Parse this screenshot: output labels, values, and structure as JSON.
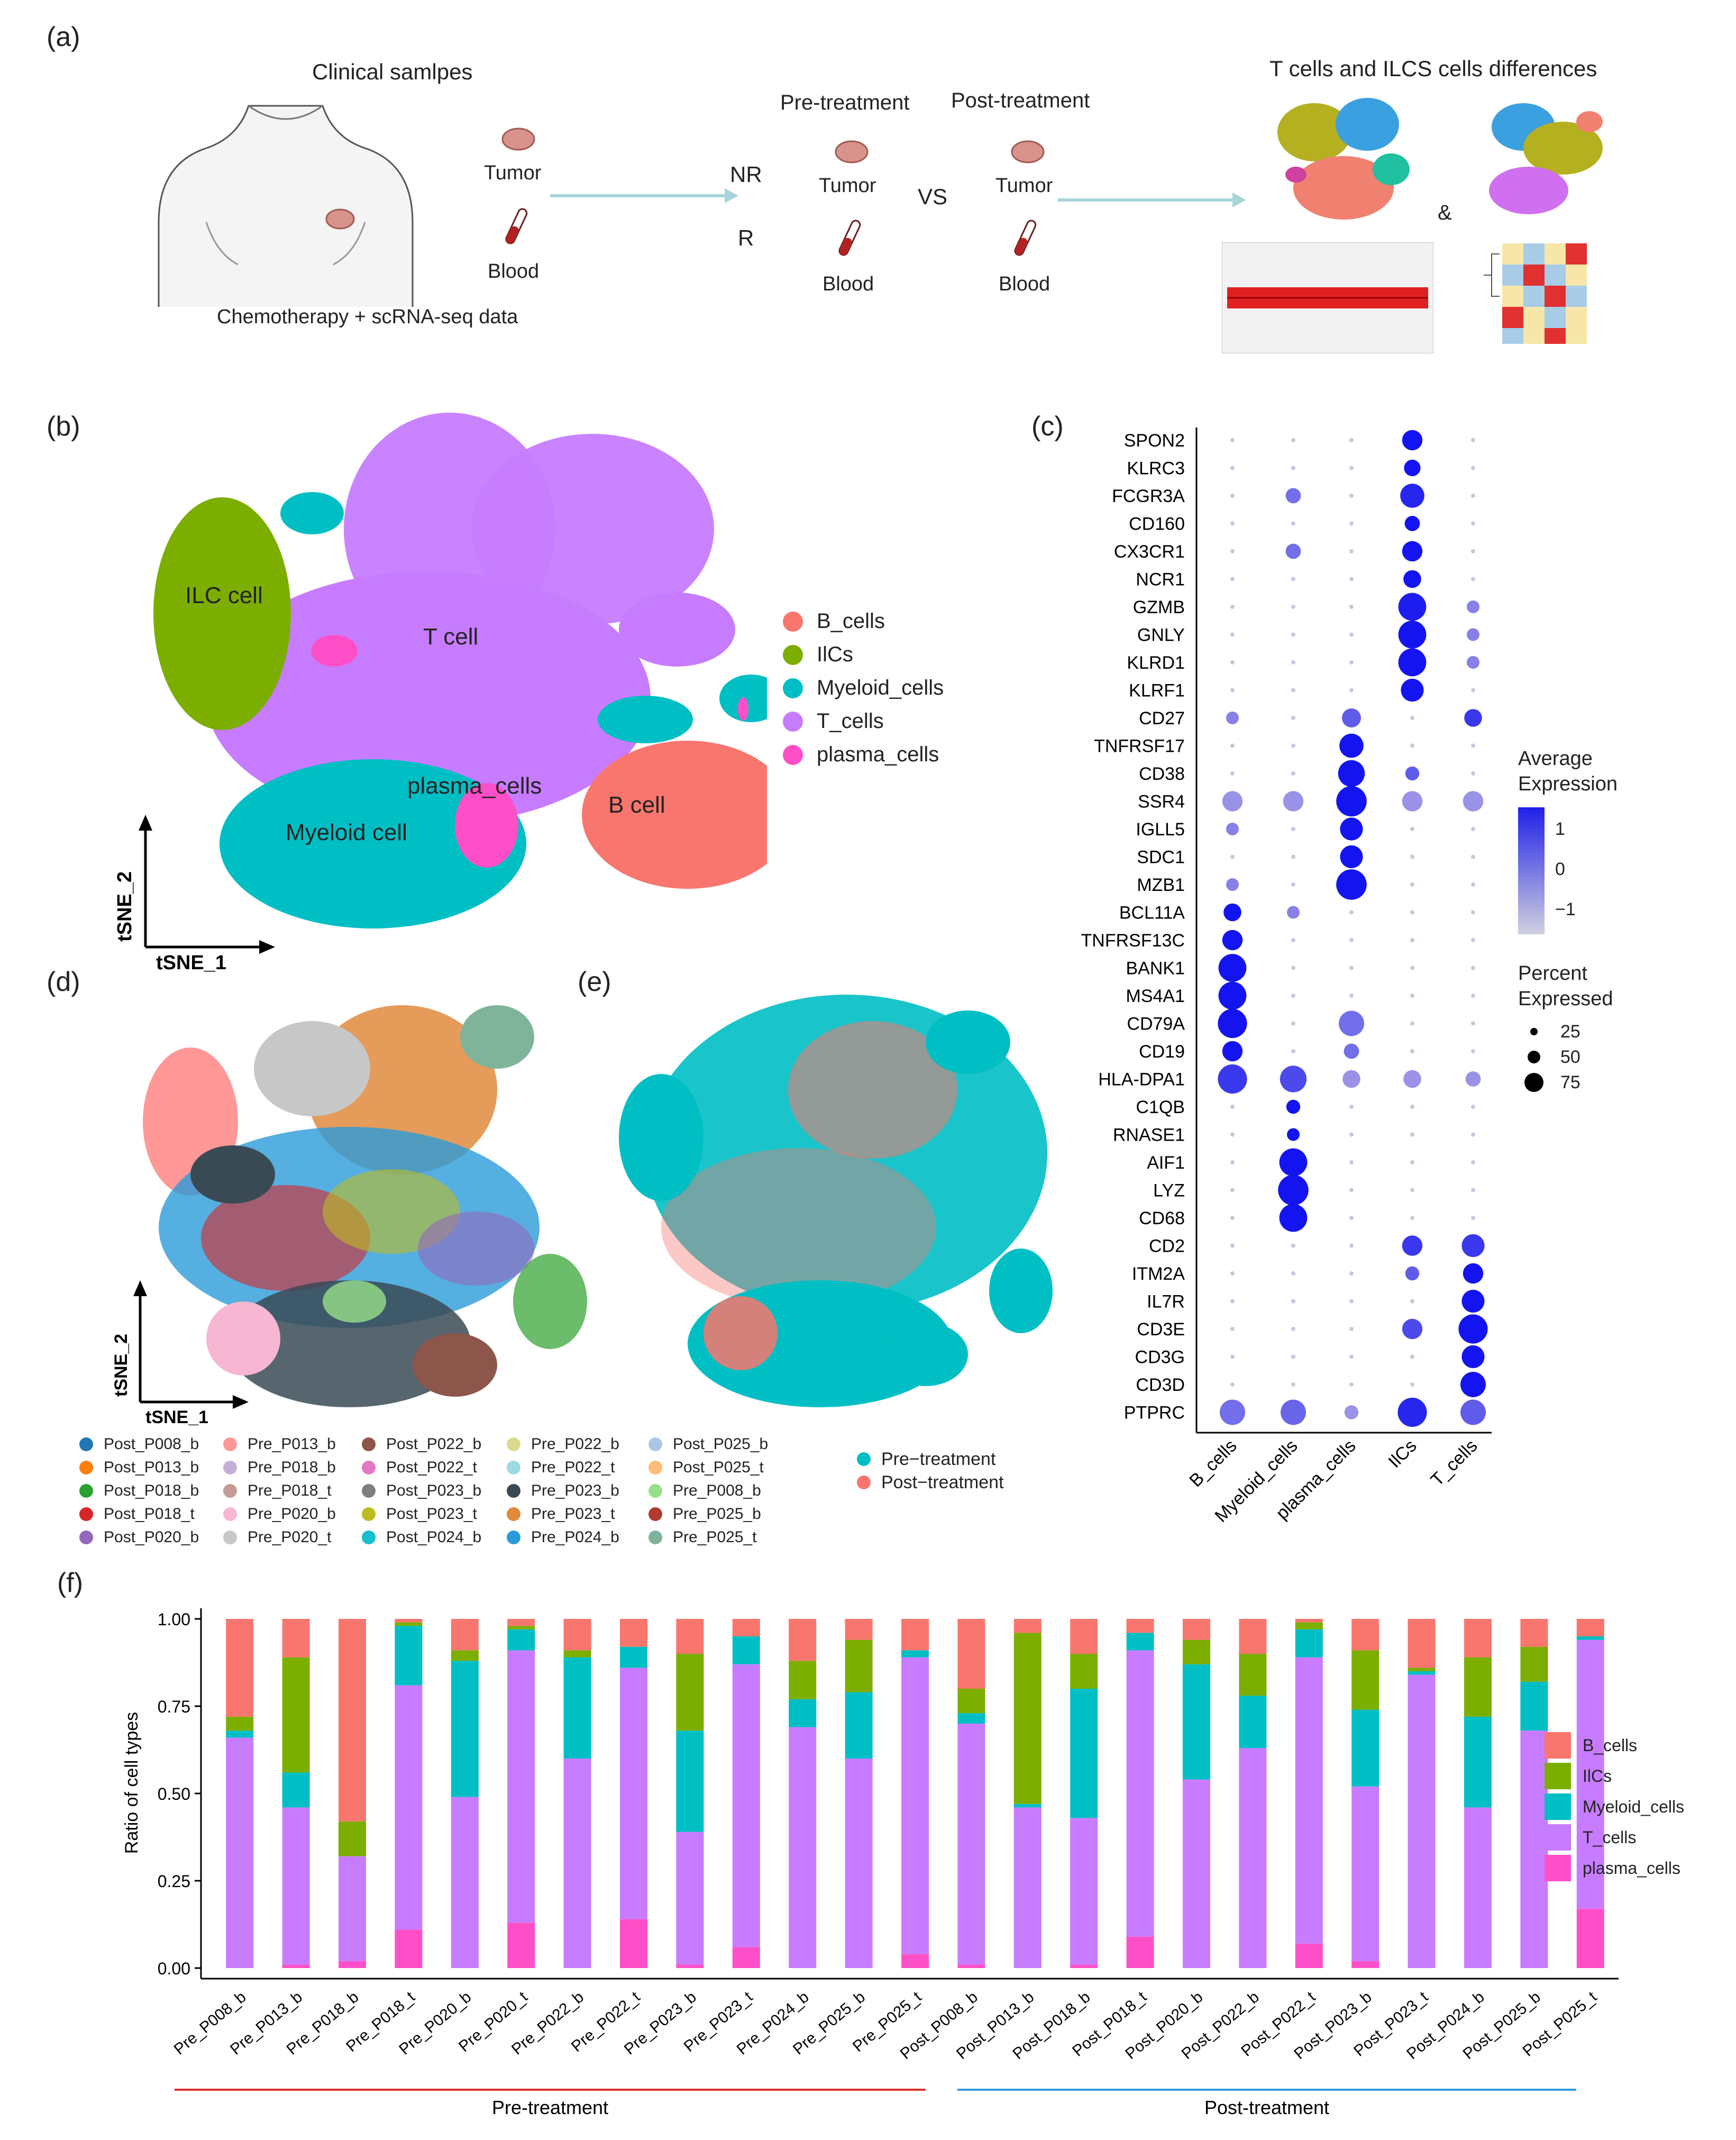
{
  "panels": {
    "a": "(a)",
    "b": "(b)",
    "c": "(c)",
    "d": "(d)",
    "e": "(e)",
    "f": "(f)"
  },
  "a": {
    "clinical": "Clinical samlpes",
    "tumor": "Tumor",
    "blood": "Blood",
    "chemo": "Chemotherapy + scRNA-seq data",
    "nr": "NR",
    "r": "R",
    "pre": "Pre-treatment",
    "post": "Post-treatment",
    "vs": "VS",
    "diff": "T cells and ILCS cells differences",
    "amp": "&"
  },
  "b": {
    "clusters": [
      "ILC cell",
      "T cell",
      "plasma_cells",
      "Myeloid cell",
      "B cell"
    ],
    "axis_x": "tSNE_1",
    "axis_y": "tSNE_2",
    "legend": [
      {
        "label": "B_cells",
        "color": "#F8766D"
      },
      {
        "label": "IlCs",
        "color": "#7CAE00"
      },
      {
        "label": "Myeloid_cells",
        "color": "#00BFC4"
      },
      {
        "label": "T_cells",
        "color": "#C77CFF"
      },
      {
        "label": "plasma_cells",
        "color": "#FF4FC8"
      }
    ]
  },
  "c": {
    "genes": [
      "SPON2",
      "KLRC3",
      "FCGR3A",
      "CD160",
      "CX3CR1",
      "NCR1",
      "GZMB",
      "GNLY",
      "KLRD1",
      "KLRF1",
      "CD27",
      "TNFRSF17",
      "CD38",
      "SSR4",
      "IGLL5",
      "SDC1",
      "MZB1",
      "BCL11A",
      "TNFRSF13C",
      "BANK1",
      "MS4A1",
      "CD79A",
      "CD19",
      "HLA-DPA1",
      "C1QB",
      "RNASE1",
      "AIF1",
      "LYZ",
      "CD68",
      "CD2",
      "ITM2A",
      "IL7R",
      "CD3E",
      "CD3G",
      "CD3D",
      "PTPRC"
    ],
    "cell_types": [
      "B_cells",
      "Myeloid_cells",
      "plasma_cells",
      "IlCs",
      "T_cells"
    ],
    "legend_expr_title": [
      "Average",
      "Expression"
    ],
    "expr_ticks": [
      "1",
      "0",
      "−1"
    ],
    "legend_pct_title": [
      "Percent",
      "Expressed"
    ],
    "pct_ticks": [
      "25",
      "50",
      "75"
    ]
  },
  "d": {
    "axis_x": "tSNE_1",
    "axis_y": "tSNE_2",
    "samples": [
      {
        "label": "Post_P008_b",
        "color": "#1F77B4"
      },
      {
        "label": "Post_P013_b",
        "color": "#FF7F0E"
      },
      {
        "label": "Post_P018_b",
        "color": "#2CA02C"
      },
      {
        "label": "Post_P018_t",
        "color": "#D62728"
      },
      {
        "label": "Post_P020_b",
        "color": "#9467BD"
      },
      {
        "label": "Pre_P013_b",
        "color": "#FF9896"
      },
      {
        "label": "Pre_P018_b",
        "color": "#C5B0D5"
      },
      {
        "label": "Pre_P018_t",
        "color": "#C49C94"
      },
      {
        "label": "Pre_P020_b",
        "color": "#F7B6D2"
      },
      {
        "label": "Pre_P020_t",
        "color": "#C7C7C7"
      },
      {
        "label": "Post_P022_b",
        "color": "#8C564B"
      },
      {
        "label": "Post_P022_t",
        "color": "#E377C2"
      },
      {
        "label": "Post_P023_b",
        "color": "#7F7F7F"
      },
      {
        "label": "Post_P023_t",
        "color": "#BCBD22"
      },
      {
        "label": "Post_P024_b",
        "color": "#17BECF"
      },
      {
        "label": "Pre_P022_b",
        "color": "#DBDB8D"
      },
      {
        "label": "Pre_P022_t",
        "color": "#9EDAE5"
      },
      {
        "label": "Pre_P023_b",
        "color": "#3A4A55"
      },
      {
        "label": "Pre_P023_t",
        "color": "#E08A3C"
      },
      {
        "label": "Pre_P024_b",
        "color": "#2A9BD8"
      },
      {
        "label": "Post_P025_b",
        "color": "#AEC7E8"
      },
      {
        "label": "Post_P025_t",
        "color": "#FFBB78"
      },
      {
        "label": "Pre_P008_b",
        "color": "#98DF8A"
      },
      {
        "label": "Pre_P025_b",
        "color": "#B03A2E"
      },
      {
        "label": "Pre_P025_t",
        "color": "#7FB49A"
      }
    ]
  },
  "e": {
    "legend": [
      {
        "label": "Pre−treatment",
        "color": "#00BFC4"
      },
      {
        "label": "Post−treatment",
        "color": "#F8766D"
      }
    ]
  },
  "chart_data": {
    "type": "bar",
    "stacked": true,
    "ylabel": "Ratio of cell types",
    "ylim": [
      0,
      1
    ],
    "yticks": [
      "0.00",
      "0.25",
      "0.50",
      "0.75",
      "1.00"
    ],
    "categories": [
      "Pre_P008_b",
      "Pre_P013_b",
      "Pre_P018_b",
      "Pre_P018_t",
      "Pre_P020_b",
      "Pre_P020_t",
      "Pre_P022_b",
      "Pre_P022_t",
      "Pre_P023_b",
      "Pre_P023_t",
      "Pre_P024_b",
      "Pre_P025_b",
      "Pre_P025_t",
      "Post_P008_b",
      "Post_P013_b",
      "Post_P018_b",
      "Post_P018_t",
      "Post_P020_b",
      "Post_P022_b",
      "Post_P022_t",
      "Post_P023_b",
      "Post_P023_t",
      "Post_P024_b",
      "Post_P025_b",
      "Post_P025_t"
    ],
    "series": [
      {
        "name": "plasma_cells",
        "color": "#FF4FC8",
        "values": [
          0.0,
          0.01,
          0.02,
          0.11,
          0.0,
          0.13,
          0.0,
          0.14,
          0.01,
          0.06,
          0.0,
          0.0,
          0.04,
          0.01,
          0.0,
          0.01,
          0.09,
          0.0,
          0.0,
          0.07,
          0.02,
          0.0,
          0.0,
          0.0,
          0.17
        ]
      },
      {
        "name": "T_cells",
        "color": "#C77CFF",
        "values": [
          0.66,
          0.45,
          0.3,
          0.7,
          0.49,
          0.78,
          0.6,
          0.72,
          0.38,
          0.81,
          0.69,
          0.6,
          0.85,
          0.69,
          0.46,
          0.42,
          0.82,
          0.54,
          0.63,
          0.82,
          0.5,
          0.84,
          0.46,
          0.68,
          0.77
        ]
      },
      {
        "name": "Myeloid_cells",
        "color": "#00BFC4",
        "values": [
          0.02,
          0.1,
          0.0,
          0.17,
          0.39,
          0.06,
          0.29,
          0.06,
          0.29,
          0.08,
          0.08,
          0.19,
          0.02,
          0.03,
          0.01,
          0.37,
          0.05,
          0.33,
          0.15,
          0.08,
          0.22,
          0.01,
          0.26,
          0.14,
          0.01
        ]
      },
      {
        "name": "IlCs",
        "color": "#7CAE00",
        "values": [
          0.04,
          0.33,
          0.1,
          0.01,
          0.03,
          0.01,
          0.02,
          0.0,
          0.22,
          0.0,
          0.11,
          0.15,
          0.0,
          0.07,
          0.49,
          0.1,
          0.0,
          0.07,
          0.12,
          0.02,
          0.17,
          0.01,
          0.17,
          0.1,
          0.0
        ]
      },
      {
        "name": "B_cells",
        "color": "#F8766D",
        "values": [
          0.28,
          0.11,
          0.58,
          0.01,
          0.09,
          0.02,
          0.09,
          0.08,
          0.1,
          0.05,
          0.12,
          0.06,
          0.09,
          0.2,
          0.04,
          0.1,
          0.04,
          0.06,
          0.1,
          0.01,
          0.09,
          0.14,
          0.11,
          0.08,
          0.05
        ]
      }
    ],
    "legend": [
      "B_cells",
      "IlCs",
      "Myeloid_cells",
      "T_cells",
      "plasma_cells"
    ],
    "groups": [
      {
        "label": "Pre-treatment",
        "color": "#E03030"
      },
      {
        "label": "Post-treatment",
        "color": "#2E9BE0"
      }
    ]
  }
}
